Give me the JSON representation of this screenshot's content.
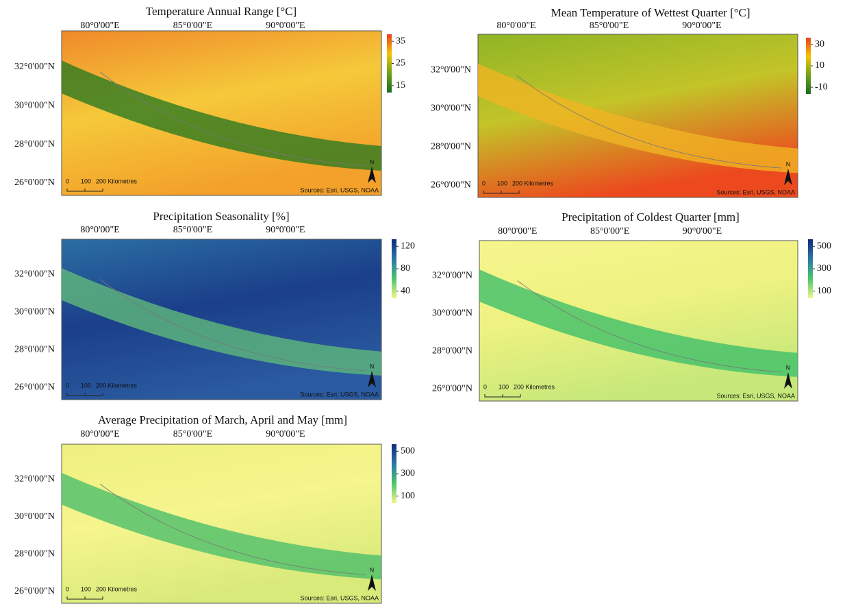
{
  "graticule": {
    "lon": [
      "80°0'00\"E",
      "85°0'00\"E",
      "90°0'00\"E"
    ],
    "lat": [
      "32°0'00\"N",
      "30°0'00\"N",
      "28°0'00\"N",
      "26°0'00\"N"
    ]
  },
  "scale_bar": [
    "0",
    "100",
    "200 Kilometres"
  ],
  "source": "Sources: Esri, USGS, NOAA",
  "north": "N",
  "panels": [
    {
      "title": "Temperature Annual Range [°C]",
      "legend": {
        "ticks": [
          35,
          25,
          15
        ],
        "colors": [
          "#e8401c",
          "#f5c400",
          "#6fa21c",
          "#1b6e1e"
        ]
      }
    },
    {
      "title": "Mean Temperature of Wettest Quarter [°C]",
      "legend": {
        "ticks": [
          30,
          10,
          -10
        ],
        "colors": [
          "#e8401c",
          "#f5c400",
          "#6fa21c",
          "#1b6e1e"
        ]
      }
    },
    {
      "title": "Precipitation Seasonality [%]",
      "legend": {
        "ticks": [
          120,
          80,
          40
        ],
        "colors": [
          "#102a7a",
          "#2a78a8",
          "#4cc56a",
          "#f2f58a"
        ]
      }
    },
    {
      "title": "Precipitation of Coldest Quarter [mm]",
      "legend": {
        "ticks": [
          500,
          300,
          100
        ],
        "colors": [
          "#102a7a",
          "#2a78a8",
          "#4cc56a",
          "#f2f58a"
        ]
      }
    },
    {
      "title": "Average Precipitation of March, April and May [mm]",
      "legend": {
        "ticks": [
          500,
          300,
          100
        ],
        "colors": [
          "#102a7a",
          "#2a78a8",
          "#4cc56a",
          "#f2f58a"
        ]
      }
    }
  ]
}
